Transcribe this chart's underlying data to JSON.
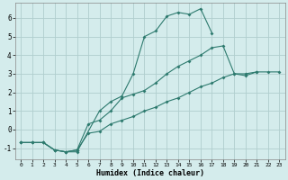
{
  "xlabel": "Humidex (Indice chaleur)",
  "bg_color": "#d4ecec",
  "grid_color": "#b0cece",
  "line_color": "#2d7a6e",
  "xlim": [
    -0.5,
    23.5
  ],
  "ylim": [
    -1.6,
    6.8
  ],
  "yticks": [
    -1,
    0,
    1,
    2,
    3,
    4,
    5,
    6
  ],
  "xticks": [
    0,
    1,
    2,
    3,
    4,
    5,
    6,
    7,
    8,
    9,
    10,
    11,
    12,
    13,
    14,
    15,
    16,
    17,
    18,
    19,
    20,
    21,
    22,
    23
  ],
  "line1_x": [
    0,
    1,
    2,
    3,
    4,
    5,
    7,
    8,
    9,
    10,
    11,
    12,
    13,
    14,
    15,
    16,
    17
  ],
  "line1_y": [
    -0.7,
    -0.7,
    -0.7,
    -1.1,
    -1.2,
    -1.2,
    1.0,
    1.5,
    1.8,
    3.0,
    5.0,
    5.3,
    6.1,
    6.3,
    6.2,
    6.5,
    5.2
  ],
  "line2_x": [
    0,
    1,
    2,
    3,
    4,
    5,
    6,
    7,
    8,
    9,
    10,
    11,
    12,
    13,
    14,
    15,
    16,
    17,
    18,
    19,
    20,
    21
  ],
  "line2_y": [
    -0.7,
    -0.7,
    -0.7,
    -1.1,
    -1.2,
    -1.1,
    0.3,
    0.5,
    1.0,
    1.7,
    1.9,
    2.1,
    2.5,
    3.0,
    3.4,
    3.7,
    4.0,
    4.4,
    4.5,
    3.0,
    2.9,
    3.1
  ],
  "line3_x": [
    0,
    1,
    2,
    3,
    4,
    5,
    6,
    7,
    8,
    9,
    10,
    11,
    12,
    13,
    14,
    15,
    16,
    17,
    18,
    19,
    20,
    21,
    22,
    23
  ],
  "line3_y": [
    -0.7,
    -0.7,
    -0.7,
    -1.1,
    -1.2,
    -1.1,
    -0.2,
    -0.1,
    0.3,
    0.5,
    0.7,
    1.0,
    1.2,
    1.5,
    1.7,
    2.0,
    2.3,
    2.5,
    2.8,
    3.0,
    3.0,
    3.1,
    3.1,
    3.1
  ]
}
